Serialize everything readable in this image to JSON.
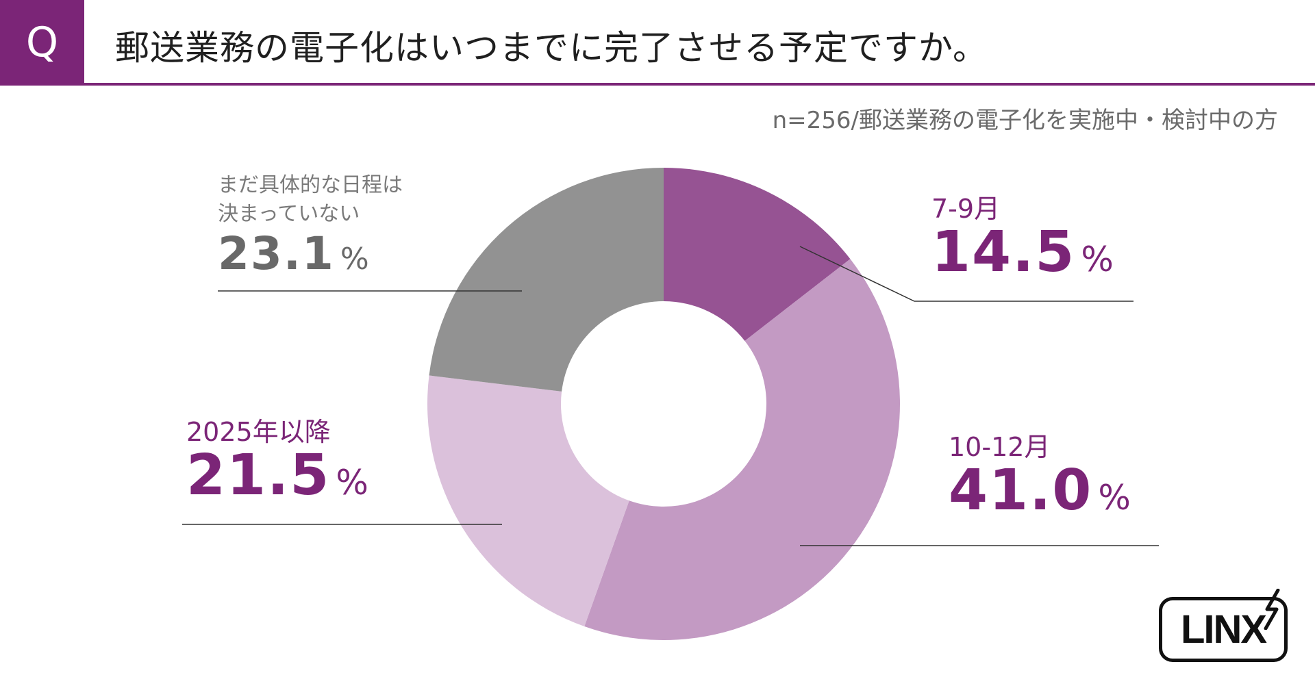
{
  "header": {
    "badge": "Q",
    "question": "郵送業務の電子化はいつまでに完了させる予定ですか。"
  },
  "sample_note": "n=256/郵送業務の電子化を実施中・検討中の方",
  "logo": {
    "text": "LINX"
  },
  "colors": {
    "accent": "#7b2577",
    "slice_1": "#965393",
    "slice_2": "#c39ac3",
    "slice_3": "#dbc1db",
    "slice_4": "#929292"
  },
  "chart_data": {
    "type": "pie",
    "donut": true,
    "categories": [
      "7-9月",
      "10-12月",
      "2025年以降",
      "まだ具体的な日程は決まっていない"
    ],
    "category_lines": [
      [
        "7-9月"
      ],
      [
        "10-12月"
      ],
      [
        "2025年以降"
      ],
      [
        "まだ具体的な日程は",
        "決まっていない"
      ]
    ],
    "values": [
      14.5,
      41.0,
      21.5,
      23.1
    ],
    "value_labels": [
      "14.5",
      "41.0",
      "21.5",
      "23.1"
    ],
    "unit": "%",
    "colors": [
      "#965393",
      "#c39ac3",
      "#dbc1db",
      "#929292"
    ],
    "title": "郵送業務の電子化はいつまでに完了させる予定ですか。",
    "legend": "none"
  }
}
